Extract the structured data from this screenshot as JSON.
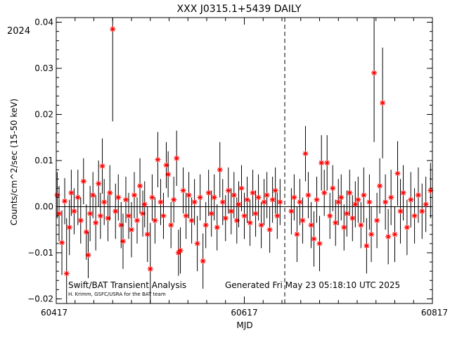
{
  "chart_data": {
    "type": "scatter",
    "title": "XXX J0315.1+5439 DAILY",
    "xlabel": "MJD",
    "ylabel": "Counts/cm^2/sec (15-50 keV)",
    "year_label": "2024",
    "xlim": [
      60417,
      60817
    ],
    "ylim": [
      -0.021,
      0.041
    ],
    "xticks": [
      60417,
      60617,
      60817
    ],
    "xtick_labels": [
      "60417",
      "60617",
      "60817"
    ],
    "yticks": [
      -0.02,
      -0.01,
      0.0,
      0.01,
      0.02,
      0.03,
      0.04
    ],
    "ytick_labels": [
      "−0.02",
      "−0.01",
      "0.00",
      "0.01",
      "0.02",
      "0.03",
      "0.04"
    ],
    "marker_color": "#ff0000",
    "reference_line_y": 0.0,
    "vertical_dashed_x": 60660,
    "footer_left": "Swift/BAT Transient Analysis",
    "footer_credit": "H. Krimm, GSFC/USRA for the BAT team",
    "footer_right": "Generated Fri May 23 05:18:10 UTC 2025",
    "series": [
      {
        "points": [
          {
            "x": 60418,
            "y": 0.0025,
            "err": 0.005
          },
          {
            "x": 60420,
            "y": -0.0015,
            "err": 0.006
          },
          {
            "x": 60423,
            "y": -0.0078,
            "err": 0.007
          },
          {
            "x": 60426,
            "y": 0.0012,
            "err": 0.005
          },
          {
            "x": 60428,
            "y": -0.0145,
            "err": 0.012
          },
          {
            "x": 60431,
            "y": -0.0045,
            "err": 0.006
          },
          {
            "x": 60433,
            "y": 0.003,
            "err": 0.005
          },
          {
            "x": 60436,
            "y": -0.001,
            "err": 0.005
          },
          {
            "x": 60440,
            "y": 0.002,
            "err": 0.006
          },
          {
            "x": 60443,
            "y": -0.003,
            "err": 0.005
          },
          {
            "x": 60446,
            "y": 0.0055,
            "err": 0.005
          },
          {
            "x": 60449,
            "y": -0.0055,
            "err": 0.006
          },
          {
            "x": 60451,
            "y": -0.0105,
            "err": 0.005
          },
          {
            "x": 60453,
            "y": -0.0015,
            "err": 0.006
          },
          {
            "x": 60456,
            "y": 0.0025,
            "err": 0.005
          },
          {
            "x": 60459,
            "y": -0.0035,
            "err": 0.006
          },
          {
            "x": 60462,
            "y": 0.005,
            "err": 0.005
          },
          {
            "x": 60464,
            "y": -0.002,
            "err": 0.005
          },
          {
            "x": 60466,
            "y": 0.0088,
            "err": 0.006
          },
          {
            "x": 60468,
            "y": 0.001,
            "err": 0.005
          },
          {
            "x": 60472,
            "y": -0.0025,
            "err": 0.005
          },
          {
            "x": 60474,
            "y": 0.003,
            "err": 0.006
          },
          {
            "x": 60477,
            "y": 0.0385,
            "err": 0.02
          },
          {
            "x": 60480,
            "y": -0.001,
            "err": 0.006
          },
          {
            "x": 60483,
            "y": 0.002,
            "err": 0.005
          },
          {
            "x": 60486,
            "y": -0.004,
            "err": 0.005
          },
          {
            "x": 60488,
            "y": -0.0075,
            "err": 0.006
          },
          {
            "x": 60491,
            "y": 0.0015,
            "err": 0.005
          },
          {
            "x": 60494,
            "y": -0.002,
            "err": 0.005
          },
          {
            "x": 60497,
            "y": -0.005,
            "err": 0.006
          },
          {
            "x": 60500,
            "y": 0.0025,
            "err": 0.005
          },
          {
            "x": 60503,
            "y": -0.003,
            "err": 0.005
          },
          {
            "x": 60506,
            "y": 0.0045,
            "err": 0.006
          },
          {
            "x": 60509,
            "y": -0.0015,
            "err": 0.005
          },
          {
            "x": 60511,
            "y": 0.0005,
            "err": 0.005
          },
          {
            "x": 60514,
            "y": -0.006,
            "err": 0.006
          },
          {
            "x": 60517,
            "y": -0.0135,
            "err": 0.01
          },
          {
            "x": 60519,
            "y": 0.002,
            "err": 0.005
          },
          {
            "x": 60522,
            "y": -0.003,
            "err": 0.005
          },
          {
            "x": 60525,
            "y": 0.0102,
            "err": 0.006
          },
          {
            "x": 60528,
            "y": 0.001,
            "err": 0.005
          },
          {
            "x": 60531,
            "y": -0.002,
            "err": 0.005
          },
          {
            "x": 60534,
            "y": 0.009,
            "err": 0.005
          },
          {
            "x": 60536,
            "y": 0.007,
            "err": 0.005
          },
          {
            "x": 60539,
            "y": -0.004,
            "err": 0.005
          },
          {
            "x": 60542,
            "y": 0.0015,
            "err": 0.005
          },
          {
            "x": 60545,
            "y": 0.0105,
            "err": 0.006
          },
          {
            "x": 60547,
            "y": -0.01,
            "err": 0.005
          },
          {
            "x": 60549,
            "y": -0.0095,
            "err": 0.005
          },
          {
            "x": 60552,
            "y": 0.0035,
            "err": 0.005
          },
          {
            "x": 60555,
            "y": -0.002,
            "err": 0.005
          },
          {
            "x": 60558,
            "y": 0.0025,
            "err": 0.005
          },
          {
            "x": 60561,
            "y": -0.003,
            "err": 0.005
          },
          {
            "x": 60564,
            "y": 0.001,
            "err": 0.005
          },
          {
            "x": 60567,
            "y": -0.008,
            "err": 0.006
          },
          {
            "x": 60570,
            "y": 0.002,
            "err": 0.005
          },
          {
            "x": 60573,
            "y": -0.0118,
            "err": 0.006
          },
          {
            "x": 60576,
            "y": -0.004,
            "err": 0.005
          },
          {
            "x": 60579,
            "y": 0.003,
            "err": 0.005
          },
          {
            "x": 60582,
            "y": -0.0015,
            "err": 0.005
          },
          {
            "x": 60585,
            "y": 0.002,
            "err": 0.005
          },
          {
            "x": 60588,
            "y": -0.0045,
            "err": 0.005
          },
          {
            "x": 60591,
            "y": 0.008,
            "err": 0.006
          },
          {
            "x": 60594,
            "y": 0.001,
            "err": 0.005
          },
          {
            "x": 60597,
            "y": -0.0025,
            "err": 0.005
          },
          {
            "x": 60600,
            "y": 0.0035,
            "err": 0.005
          },
          {
            "x": 60603,
            "y": -0.001,
            "err": 0.005
          },
          {
            "x": 60606,
            "y": 0.0025,
            "err": 0.005
          },
          {
            "x": 60609,
            "y": -0.003,
            "err": 0.005
          },
          {
            "x": 60611,
            "y": 0.0005,
            "err": 0.005
          },
          {
            "x": 60614,
            "y": 0.004,
            "err": 0.005
          },
          {
            "x": 60617,
            "y": -0.002,
            "err": 0.005
          },
          {
            "x": 60620,
            "y": 0.0015,
            "err": 0.005
          },
          {
            "x": 60623,
            "y": -0.0035,
            "err": 0.005
          },
          {
            "x": 60626,
            "y": 0.003,
            "err": 0.005
          },
          {
            "x": 60629,
            "y": -0.0015,
            "err": 0.005
          },
          {
            "x": 60632,
            "y": 0.002,
            "err": 0.005
          },
          {
            "x": 60635,
            "y": -0.004,
            "err": 0.005
          },
          {
            "x": 60638,
            "y": 0.001,
            "err": 0.005
          },
          {
            "x": 60641,
            "y": 0.0025,
            "err": 0.005
          },
          {
            "x": 60644,
            "y": -0.005,
            "err": 0.005
          },
          {
            "x": 60647,
            "y": 0.0015,
            "err": 0.005
          },
          {
            "x": 60650,
            "y": 0.0035,
            "err": 0.005
          },
          {
            "x": 60652,
            "y": -0.002,
            "err": 0.005
          },
          {
            "x": 60655,
            "y": 0.001,
            "err": 0.005
          },
          {
            "x": 60667,
            "y": -0.001,
            "err": 0.005
          },
          {
            "x": 60670,
            "y": 0.002,
            "err": 0.005
          },
          {
            "x": 60673,
            "y": -0.006,
            "err": 0.006
          },
          {
            "x": 60676,
            "y": 0.001,
            "err": 0.005
          },
          {
            "x": 60679,
            "y": -0.003,
            "err": 0.005
          },
          {
            "x": 60682,
            "y": 0.0115,
            "err": 0.006
          },
          {
            "x": 60685,
            "y": 0.0025,
            "err": 0.005
          },
          {
            "x": 60688,
            "y": -0.004,
            "err": 0.005
          },
          {
            "x": 60691,
            "y": -0.007,
            "err": 0.006
          },
          {
            "x": 60694,
            "y": 0.0015,
            "err": 0.005
          },
          {
            "x": 60697,
            "y": -0.008,
            "err": 0.006
          },
          {
            "x": 60699,
            "y": 0.0095,
            "err": 0.006
          },
          {
            "x": 60702,
            "y": 0.003,
            "err": 0.005
          },
          {
            "x": 60705,
            "y": 0.0095,
            "err": 0.006
          },
          {
            "x": 60708,
            "y": -0.002,
            "err": 0.005
          },
          {
            "x": 60711,
            "y": 0.004,
            "err": 0.005
          },
          {
            "x": 60714,
            "y": -0.0035,
            "err": 0.005
          },
          {
            "x": 60717,
            "y": 0.001,
            "err": 0.005
          },
          {
            "x": 60720,
            "y": 0.002,
            "err": 0.005
          },
          {
            "x": 60723,
            "y": -0.0045,
            "err": 0.005
          },
          {
            "x": 60726,
            "y": -0.0015,
            "err": 0.005
          },
          {
            "x": 60729,
            "y": 0.003,
            "err": 0.005
          },
          {
            "x": 60732,
            "y": -0.0025,
            "err": 0.005
          },
          {
            "x": 60735,
            "y": 0.0005,
            "err": 0.005
          },
          {
            "x": 60738,
            "y": 0.0015,
            "err": 0.005
          },
          {
            "x": 60741,
            "y": -0.004,
            "err": 0.005
          },
          {
            "x": 60744,
            "y": 0.0025,
            "err": 0.006
          },
          {
            "x": 60747,
            "y": -0.0085,
            "err": 0.006
          },
          {
            "x": 60750,
            "y": 0.001,
            "err": 0.006
          },
          {
            "x": 60752,
            "y": -0.006,
            "err": 0.006
          },
          {
            "x": 60755,
            "y": 0.029,
            "err": 0.015
          },
          {
            "x": 60758,
            "y": -0.003,
            "err": 0.006
          },
          {
            "x": 60761,
            "y": 0.0045,
            "err": 0.006
          },
          {
            "x": 60764,
            "y": 0.0225,
            "err": 0.012
          },
          {
            "x": 60767,
            "y": 0.001,
            "err": 0.006
          },
          {
            "x": 60770,
            "y": -0.0065,
            "err": 0.006
          },
          {
            "x": 60773,
            "y": 0.002,
            "err": 0.006
          },
          {
            "x": 60777,
            "y": -0.006,
            "err": 0.006
          },
          {
            "x": 60780,
            "y": 0.0072,
            "err": 0.007
          },
          {
            "x": 60783,
            "y": -0.001,
            "err": 0.007
          },
          {
            "x": 60786,
            "y": 0.003,
            "err": 0.006
          },
          {
            "x": 60790,
            "y": -0.0045,
            "err": 0.006
          },
          {
            "x": 60794,
            "y": 0.0015,
            "err": 0.006
          },
          {
            "x": 60798,
            "y": -0.002,
            "err": 0.006
          },
          {
            "x": 60802,
            "y": 0.0025,
            "err": 0.006
          },
          {
            "x": 60806,
            "y": -0.001,
            "err": 0.006
          },
          {
            "x": 60810,
            "y": 0.0005,
            "err": 0.006
          },
          {
            "x": 60815,
            "y": 0.0035,
            "err": 0.006
          }
        ]
      }
    ]
  }
}
